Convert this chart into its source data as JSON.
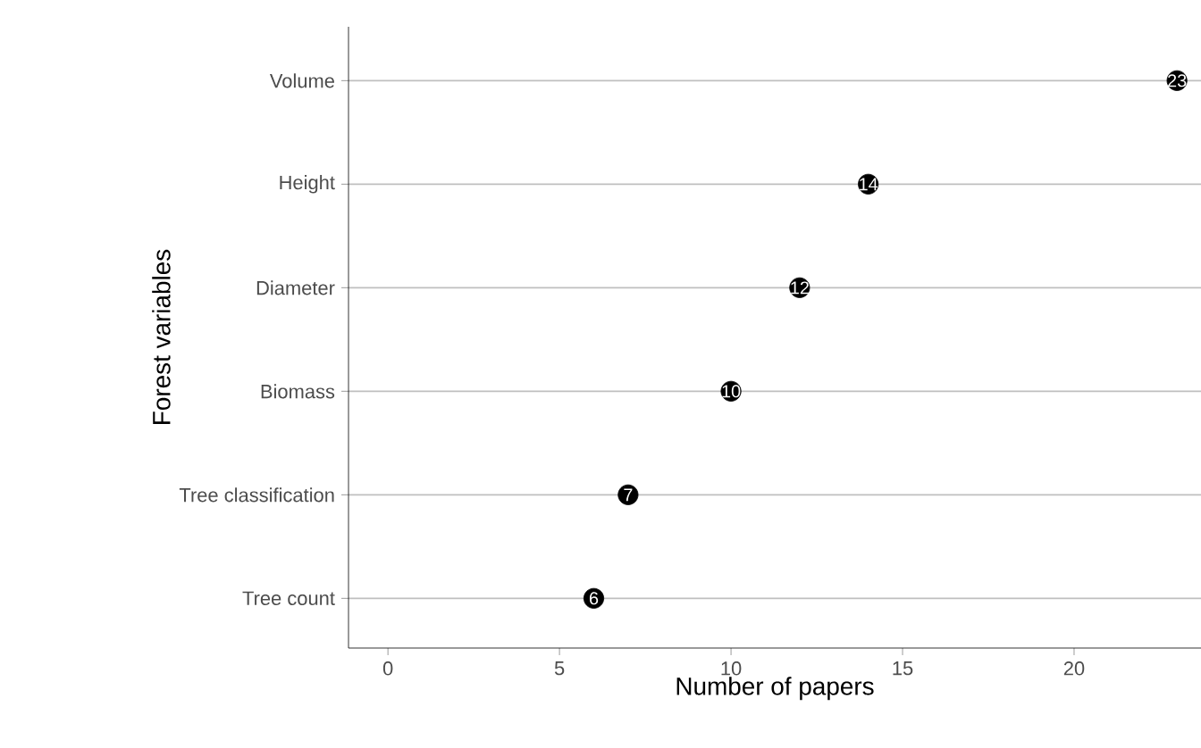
{
  "chart_data": {
    "type": "scatter",
    "orientation": "horizontal",
    "xlabel": "Number of papers",
    "ylabel": "Forest variables",
    "categories": [
      "Volume",
      "Height",
      "Diameter",
      "Biomass",
      "Tree classification",
      "Tree count"
    ],
    "values": [
      23,
      14,
      12,
      10,
      7,
      6
    ],
    "color": "#000000",
    "marker": "circle",
    "data_labels": true,
    "grid": "y",
    "xlim": [
      -1.15,
      23.7
    ],
    "xticks": [
      0,
      5,
      10,
      15,
      20
    ]
  }
}
